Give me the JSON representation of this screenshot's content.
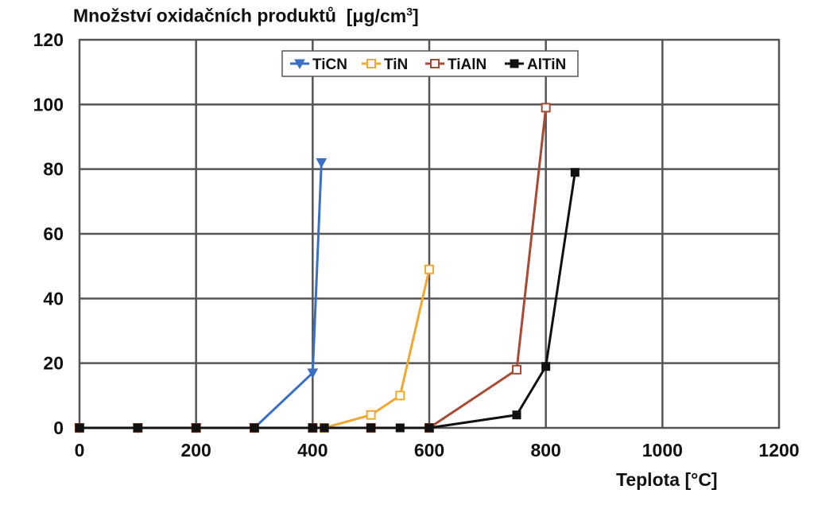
{
  "chart_data": {
    "type": "line",
    "ylabel": "Množství oxidačních produktů",
    "ylabel_unit_prefix": "[",
    "ylabel_unit_mu": "μ",
    "ylabel_unit_mid": "g/cm",
    "ylabel_unit_exp": "3",
    "ylabel_unit_suffix": "]",
    "xlabel": "Teplota [°C]",
    "xlim": [
      0,
      1200
    ],
    "ylim": [
      0,
      120
    ],
    "x_ticks": [
      0,
      200,
      400,
      600,
      800,
      1000,
      1200
    ],
    "y_ticks": [
      0,
      20,
      40,
      60,
      80,
      100,
      120
    ],
    "grid": true,
    "legend_position": "top-center",
    "series": [
      {
        "name": "TiCN",
        "color": "#3a6fc4",
        "marker": "triangle",
        "points": [
          [
            0,
            0
          ],
          [
            100,
            0
          ],
          [
            200,
            0
          ],
          [
            300,
            0
          ],
          [
            400,
            17
          ],
          [
            415,
            82
          ]
        ]
      },
      {
        "name": "TiN",
        "color": "#f0a830",
        "marker": "square-open",
        "points": [
          [
            0,
            0
          ],
          [
            100,
            0
          ],
          [
            200,
            0
          ],
          [
            300,
            0
          ],
          [
            400,
            0
          ],
          [
            420,
            0
          ],
          [
            500,
            4
          ],
          [
            550,
            10
          ],
          [
            600,
            49
          ]
        ]
      },
      {
        "name": "TiAlN",
        "color": "#a84a35",
        "marker": "square-open",
        "points": [
          [
            0,
            0
          ],
          [
            100,
            0
          ],
          [
            200,
            0
          ],
          [
            300,
            0
          ],
          [
            400,
            0
          ],
          [
            500,
            0
          ],
          [
            600,
            0
          ],
          [
            750,
            18
          ],
          [
            800,
            99
          ]
        ]
      },
      {
        "name": "AlTiN",
        "color": "#111111",
        "marker": "square-filled",
        "points": [
          [
            0,
            0
          ],
          [
            100,
            0
          ],
          [
            200,
            0
          ],
          [
            300,
            0
          ],
          [
            400,
            0
          ],
          [
            420,
            0
          ],
          [
            500,
            0
          ],
          [
            550,
            0
          ],
          [
            600,
            0
          ],
          [
            750,
            4
          ],
          [
            800,
            19
          ],
          [
            850,
            79
          ]
        ]
      }
    ]
  }
}
